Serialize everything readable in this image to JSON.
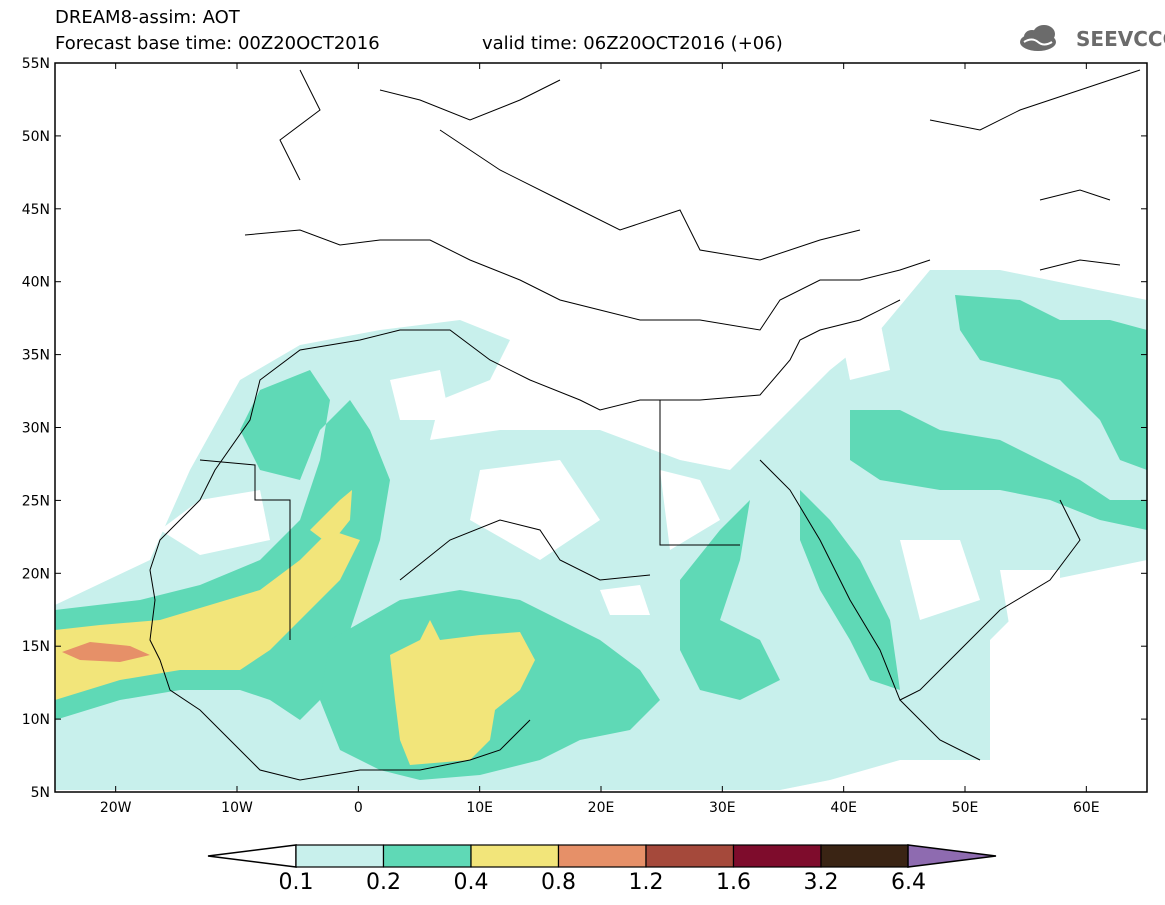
{
  "header": {
    "title": "DREAM8-assim: AOT",
    "base_time": "Forecast base time: 00Z20OCT2016",
    "valid_time": "valid time: 06Z20OCT2016 (+06)"
  },
  "logo": {
    "text": "SEEVCCC",
    "icon": "cloud-icon"
  },
  "map": {
    "lat_labels": [
      "55N",
      "50N",
      "45N",
      "40N",
      "35N",
      "30N",
      "25N",
      "20N",
      "15N",
      "10N",
      "5N"
    ],
    "lon_labels": [
      "20W",
      "10W",
      "0",
      "10E",
      "20E",
      "30E",
      "40E",
      "50E",
      "60E"
    ],
    "lon_range": [
      -25,
      65
    ],
    "lat_range": [
      5,
      55
    ]
  },
  "colorbar": {
    "labels": [
      "0.1",
      "0.2",
      "0.4",
      "0.8",
      "1.2",
      "1.6",
      "3.2",
      "6.4"
    ],
    "colors": [
      "#c8f0ec",
      "#5fd9b6",
      "#f2e57a",
      "#e69068",
      "#a5493b",
      "#7e0c2c",
      "#3a2414",
      "#8e6bb0"
    ]
  }
}
